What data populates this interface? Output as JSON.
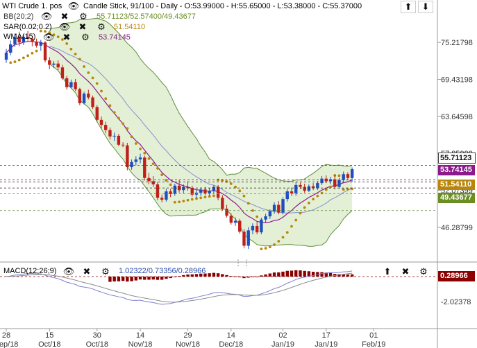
{
  "header": {
    "symbol": "WTI Crude 1. pos",
    "chart_info": "Candle Stick, 91/100 - Daily - O:53.99000 - H:55.65000 - L:53.38000 - C:55.37000"
  },
  "indicators": [
    {
      "label": "BB(20;2)",
      "values": "55.71123/52.57400/49.43677",
      "color": "#6b8e23"
    },
    {
      "label": "SAR(0.02;0.2)",
      "values": "51.54110",
      "color": "#b8860b"
    },
    {
      "label": "WMA(15)",
      "values": "53.74145",
      "color": "#8b1a8b"
    }
  ],
  "macd": {
    "label": "MACD(12;26;9)",
    "values": "1.02322/0.73356/0.28966",
    "badge": "0.28966",
    "tick": "-2.02378"
  },
  "price_axis": [
    "75.21798",
    "69.43198",
    "63.64598",
    "57.85999",
    "52.07399",
    "46.28799"
  ],
  "price_badges": [
    {
      "text": "55.71123",
      "style": "outline"
    },
    {
      "text": "53.74145",
      "bg": "#8b1a8b"
    },
    {
      "text": "51.54110",
      "bg": "#b8860b"
    },
    {
      "text": "49.43677",
      "bg": "#6b8e23"
    }
  ],
  "x_axis": [
    {
      "day": "28",
      "month": "Sep/18"
    },
    {
      "day": "15",
      "month": "Oct/18"
    },
    {
      "day": "30",
      "month": "Oct/18"
    },
    {
      "day": "14",
      "month": "Nov/18"
    },
    {
      "day": "29",
      "month": "Nov/18"
    },
    {
      "day": "14",
      "month": "Dec/18"
    },
    {
      "day": "02",
      "month": "Jan/19"
    },
    {
      "day": "17",
      "month": "Jan/19"
    },
    {
      "day": "01",
      "month": "Feb/19"
    }
  ],
  "colors": {
    "up": "#1f4fbf",
    "down": "#c0201a",
    "bb_fill": "#e3f0d6",
    "bb_line": "#5e8c3a",
    "wma": "#8b1a8b",
    "sar": "#b8860b",
    "macd_hist": "#8b0000"
  },
  "icons": [
    "eye-icon",
    "close-icon",
    "gear-icon",
    "up-arrow-icon",
    "down-arrow-icon",
    "drag-handle-icon"
  ],
  "chart_data": {
    "type": "candlestick",
    "title": "WTI Crude 1. pos",
    "ylim": [
      41.5,
      80.0
    ],
    "candles": [
      {
        "o": 72.5,
        "h": 74.2,
        "l": 72.0,
        "c": 73.6
      },
      {
        "o": 73.6,
        "h": 75.5,
        "l": 73.2,
        "c": 74.9
      },
      {
        "o": 74.9,
        "h": 76.6,
        "l": 74.5,
        "c": 76.0
      },
      {
        "o": 76.0,
        "h": 76.9,
        "l": 74.6,
        "c": 75.2
      },
      {
        "o": 75.2,
        "h": 76.5,
        "l": 74.8,
        "c": 76.1
      },
      {
        "o": 76.1,
        "h": 77.0,
        "l": 75.4,
        "c": 75.8
      },
      {
        "o": 75.8,
        "h": 76.2,
        "l": 74.6,
        "c": 75.3
      },
      {
        "o": 75.3,
        "h": 75.8,
        "l": 74.4,
        "c": 74.7
      },
      {
        "o": 74.7,
        "h": 75.6,
        "l": 73.9,
        "c": 75.2
      },
      {
        "o": 75.2,
        "h": 75.4,
        "l": 72.1,
        "c": 72.4
      },
      {
        "o": 72.4,
        "h": 72.9,
        "l": 71.0,
        "c": 71.7
      },
      {
        "o": 71.7,
        "h": 72.3,
        "l": 71.2,
        "c": 71.9
      },
      {
        "o": 71.9,
        "h": 72.4,
        "l": 70.9,
        "c": 71.3
      },
      {
        "o": 71.3,
        "h": 71.7,
        "l": 69.3,
        "c": 69.6
      },
      {
        "o": 69.6,
        "h": 70.0,
        "l": 67.8,
        "c": 68.2
      },
      {
        "o": 68.2,
        "h": 69.4,
        "l": 68.0,
        "c": 69.0
      },
      {
        "o": 69.0,
        "h": 69.5,
        "l": 67.6,
        "c": 67.9
      },
      {
        "o": 67.9,
        "h": 68.1,
        "l": 65.4,
        "c": 65.7
      },
      {
        "o": 65.7,
        "h": 67.5,
        "l": 65.5,
        "c": 67.2
      },
      {
        "o": 67.2,
        "h": 67.8,
        "l": 66.3,
        "c": 66.6
      },
      {
        "o": 66.6,
        "h": 66.9,
        "l": 64.8,
        "c": 65.1
      },
      {
        "o": 65.1,
        "h": 65.4,
        "l": 62.8,
        "c": 63.1
      },
      {
        "o": 63.1,
        "h": 63.6,
        "l": 61.7,
        "c": 62.3
      },
      {
        "o": 62.3,
        "h": 62.8,
        "l": 61.0,
        "c": 61.5
      },
      {
        "o": 61.5,
        "h": 61.9,
        "l": 60.0,
        "c": 60.5
      },
      {
        "o": 60.5,
        "h": 61.1,
        "l": 59.8,
        "c": 60.6
      },
      {
        "o": 60.6,
        "h": 60.9,
        "l": 59.0,
        "c": 59.2
      },
      {
        "o": 59.2,
        "h": 59.6,
        "l": 58.8,
        "c": 59.1
      },
      {
        "o": 59.1,
        "h": 59.5,
        "l": 55.2,
        "c": 55.7
      },
      {
        "o": 55.7,
        "h": 56.9,
        "l": 55.3,
        "c": 56.5
      },
      {
        "o": 56.5,
        "h": 57.4,
        "l": 56.0,
        "c": 56.9
      },
      {
        "o": 56.9,
        "h": 57.8,
        "l": 56.3,
        "c": 57.2
      },
      {
        "o": 57.2,
        "h": 57.5,
        "l": 53.6,
        "c": 54.0
      },
      {
        "o": 54.0,
        "h": 54.8,
        "l": 53.0,
        "c": 53.5
      },
      {
        "o": 53.5,
        "h": 54.3,
        "l": 52.6,
        "c": 53.0
      },
      {
        "o": 53.0,
        "h": 53.4,
        "l": 50.5,
        "c": 50.9
      },
      {
        "o": 50.9,
        "h": 51.4,
        "l": 50.2,
        "c": 50.6
      },
      {
        "o": 50.6,
        "h": 52.3,
        "l": 50.3,
        "c": 51.9
      },
      {
        "o": 51.9,
        "h": 52.3,
        "l": 51.0,
        "c": 51.5
      },
      {
        "o": 51.5,
        "h": 53.1,
        "l": 51.2,
        "c": 52.8
      },
      {
        "o": 52.8,
        "h": 53.7,
        "l": 51.7,
        "c": 52.1
      },
      {
        "o": 52.1,
        "h": 53.0,
        "l": 51.6,
        "c": 52.6
      },
      {
        "o": 52.6,
        "h": 53.5,
        "l": 52.0,
        "c": 52.4
      },
      {
        "o": 52.4,
        "h": 52.8,
        "l": 51.1,
        "c": 51.4
      },
      {
        "o": 51.4,
        "h": 52.1,
        "l": 50.8,
        "c": 51.7
      },
      {
        "o": 51.7,
        "h": 52.5,
        "l": 51.2,
        "c": 52.2
      },
      {
        "o": 52.2,
        "h": 52.6,
        "l": 51.3,
        "c": 51.6
      },
      {
        "o": 51.6,
        "h": 52.4,
        "l": 51.2,
        "c": 52.0
      },
      {
        "o": 52.0,
        "h": 52.9,
        "l": 51.5,
        "c": 52.6
      },
      {
        "o": 52.6,
        "h": 52.9,
        "l": 50.5,
        "c": 50.9
      },
      {
        "o": 50.9,
        "h": 51.3,
        "l": 48.9,
        "c": 49.2
      },
      {
        "o": 49.2,
        "h": 49.8,
        "l": 47.8,
        "c": 48.1
      },
      {
        "o": 48.1,
        "h": 48.5,
        "l": 46.7,
        "c": 47.0
      },
      {
        "o": 47.0,
        "h": 47.8,
        "l": 46.5,
        "c": 47.3
      },
      {
        "o": 47.3,
        "h": 47.6,
        "l": 45.3,
        "c": 45.6
      },
      {
        "o": 45.6,
        "h": 46.0,
        "l": 43.0,
        "c": 43.4
      },
      {
        "o": 43.4,
        "h": 46.3,
        "l": 42.9,
        "c": 45.8
      },
      {
        "o": 45.8,
        "h": 46.9,
        "l": 45.2,
        "c": 46.5
      },
      {
        "o": 46.5,
        "h": 47.1,
        "l": 45.2,
        "c": 45.5
      },
      {
        "o": 45.5,
        "h": 47.8,
        "l": 45.2,
        "c": 47.5
      },
      {
        "o": 47.5,
        "h": 48.4,
        "l": 47.0,
        "c": 48.0
      },
      {
        "o": 48.0,
        "h": 49.1,
        "l": 47.6,
        "c": 48.8
      },
      {
        "o": 48.8,
        "h": 50.2,
        "l": 48.4,
        "c": 49.8
      },
      {
        "o": 49.8,
        "h": 50.4,
        "l": 48.3,
        "c": 48.6
      },
      {
        "o": 48.6,
        "h": 51.0,
        "l": 48.3,
        "c": 50.7
      },
      {
        "o": 50.7,
        "h": 52.3,
        "l": 50.3,
        "c": 51.9
      },
      {
        "o": 51.9,
        "h": 52.5,
        "l": 51.2,
        "c": 51.6
      },
      {
        "o": 51.6,
        "h": 53.4,
        "l": 51.2,
        "c": 52.9
      },
      {
        "o": 52.9,
        "h": 53.3,
        "l": 52.3,
        "c": 52.6
      },
      {
        "o": 52.6,
        "h": 53.1,
        "l": 51.7,
        "c": 52.0
      },
      {
        "o": 52.0,
        "h": 53.0,
        "l": 51.8,
        "c": 52.7
      },
      {
        "o": 52.7,
        "h": 53.2,
        "l": 52.1,
        "c": 52.4
      },
      {
        "o": 52.4,
        "h": 53.5,
        "l": 52.1,
        "c": 53.2
      },
      {
        "o": 53.2,
        "h": 54.3,
        "l": 52.9,
        "c": 53.9
      },
      {
        "o": 53.9,
        "h": 54.4,
        "l": 53.2,
        "c": 53.5
      },
      {
        "o": 53.5,
        "h": 54.2,
        "l": 53.0,
        "c": 53.8
      },
      {
        "o": 53.8,
        "h": 54.5,
        "l": 52.2,
        "c": 52.6
      },
      {
        "o": 52.6,
        "h": 54.0,
        "l": 52.3,
        "c": 53.7
      },
      {
        "o": 53.7,
        "h": 55.0,
        "l": 53.4,
        "c": 54.6
      },
      {
        "o": 54.6,
        "h": 54.9,
        "l": 53.6,
        "c": 54.0
      },
      {
        "o": 53.99,
        "h": 55.65,
        "l": 53.38,
        "c": 55.37
      }
    ]
  }
}
